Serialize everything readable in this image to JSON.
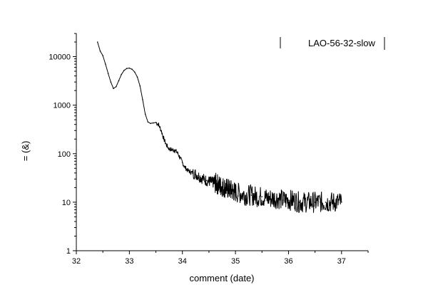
{
  "chart_data": {
    "type": "line",
    "title": "",
    "xlabel": "comment (date)",
    "ylabel": "= (&)",
    "xlim": [
      32,
      37.5
    ],
    "ylim": [
      1,
      30000
    ],
    "yscale": "log",
    "xticks": [
      32,
      33,
      34,
      35,
      36,
      37
    ],
    "xtick_labels": [
      "32",
      "33",
      "34",
      "35",
      "36",
      "37"
    ],
    "yticks": [
      1,
      10,
      100,
      1000,
      10000
    ],
    "ytick_labels": [
      "1",
      "10",
      "100",
      "1000",
      "10000"
    ],
    "grid": false,
    "legend_position": "top-right",
    "series": [
      {
        "name": "LAO-56-32-slow",
        "color": "#000000",
        "x": [
          32.4,
          32.45,
          32.5,
          32.55,
          32.6,
          32.65,
          32.7,
          32.75,
          32.8,
          32.85,
          32.9,
          32.95,
          33.0,
          33.05,
          33.1,
          33.15,
          33.2,
          33.25,
          33.3,
          33.35,
          33.4,
          33.45,
          33.5,
          33.55,
          33.6,
          33.65,
          33.7,
          33.75,
          33.8,
          33.85,
          33.9,
          33.95,
          34.0,
          34.05,
          34.1,
          34.15,
          34.2,
          34.25,
          34.3,
          34.35,
          34.4,
          34.45,
          34.5,
          34.55,
          34.6,
          34.65,
          34.7,
          34.75,
          34.8,
          34.85,
          34.9,
          34.95,
          35.0,
          35.1,
          35.2,
          35.3,
          35.4,
          35.5,
          35.6,
          35.7,
          35.8,
          35.9,
          36.0,
          36.1,
          36.2,
          36.3,
          36.4,
          36.5,
          36.6,
          36.7,
          36.8,
          36.9,
          37.0
        ],
        "values": [
          20000,
          13000,
          10500,
          7000,
          4500,
          3000,
          2200,
          2400,
          3200,
          4300,
          5200,
          5700,
          5800,
          5500,
          4800,
          3800,
          2500,
          1300,
          650,
          450,
          420,
          430,
          440,
          400,
          300,
          200,
          150,
          125,
          120,
          118,
          108,
          85,
          65,
          52,
          45,
          42,
          40,
          38,
          35,
          32,
          30,
          28,
          27,
          26,
          25,
          24,
          22,
          21,
          20,
          19,
          18,
          17,
          16,
          15,
          14,
          14,
          13,
          13,
          12,
          12,
          12,
          11,
          11,
          11,
          10,
          10,
          10,
          10,
          10,
          10,
          10,
          10,
          10
        ]
      }
    ]
  }
}
